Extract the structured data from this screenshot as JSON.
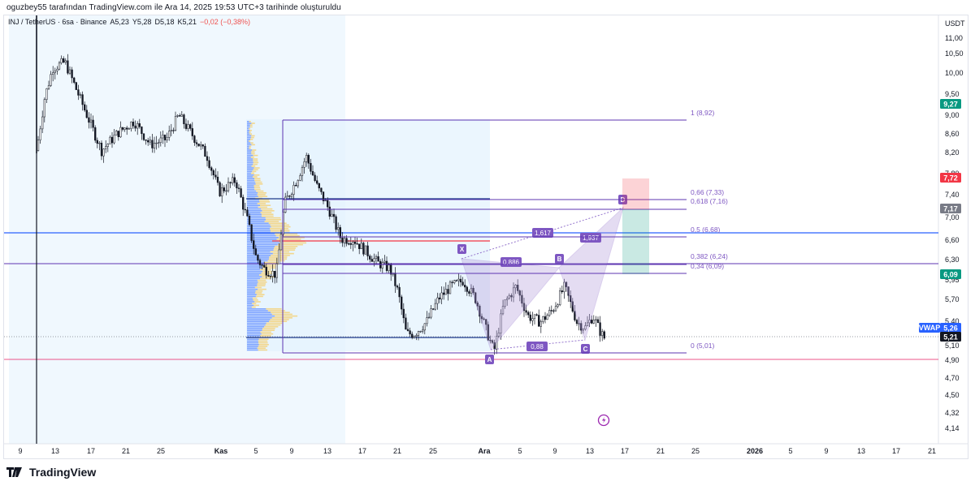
{
  "credit_line": "oguzbey55 tarafından TradingView.com ile Ara 14, 2025 19:53 UTC+3 tarihinde oluşturuldu",
  "symbol": {
    "name": "INJ / TetherUS · 6sa · Binance",
    "open": "A5,23",
    "high": "Y5,28",
    "low": "D5,18",
    "close": "K5,21",
    "change": "−0,02 (−0,38%)"
  },
  "currency": "USDT",
  "price_axis": {
    "ticks": [
      "11,00",
      "10,50",
      "10,00",
      "9,50",
      "9,00",
      "8,60",
      "8,20",
      "7,80",
      "7,40",
      "7,00",
      "6,60",
      "6,30",
      "5,95",
      "5,70",
      "5,40",
      "5,10",
      "4,90",
      "4,70",
      "4,50",
      "4,32",
      "4,14"
    ],
    "badges": [
      {
        "text": "9,27",
        "color": "#089981"
      },
      {
        "text": "7,72",
        "color": "#f23645"
      },
      {
        "text": "7,17",
        "color": "#787b86"
      },
      {
        "text": "6,09",
        "color": "#089981"
      },
      {
        "text": "5,26",
        "color": "#2962ff"
      },
      {
        "text": "5,21",
        "color": "#131722"
      }
    ],
    "vwap_label": "VWAP"
  },
  "time_axis": {
    "ticks": [
      "9",
      "13",
      "17",
      "21",
      "25",
      "Kas",
      "5",
      "9",
      "13",
      "17",
      "21",
      "25",
      "Ara",
      "5",
      "9",
      "13",
      "17",
      "21",
      "25",
      "2026",
      "5",
      "9",
      "13",
      "17",
      "21"
    ]
  },
  "fib_levels": [
    {
      "label": "1 (8,92)"
    },
    {
      "label": "0,66 (7,33)"
    },
    {
      "label": "0,618 (7,16)"
    },
    {
      "label": "0,5 (6,68)"
    },
    {
      "label": "0,382 (6,24)"
    },
    {
      "label": "0,34 (6,09)"
    },
    {
      "label": "0 (5,01)"
    }
  ],
  "pattern": {
    "points": [
      "X",
      "A",
      "B",
      "C",
      "D"
    ],
    "ratios": [
      "1,617",
      "1,937",
      "0,886",
      "0,88"
    ]
  },
  "colors": {
    "up": "#131722",
    "down": "#131722",
    "fib": "#7e57c2",
    "pattern_fill": "#b39ddb",
    "accent_blue": "#2962ff",
    "red_line": "#f23645"
  },
  "footer": {
    "brand": "TradingView"
  }
}
